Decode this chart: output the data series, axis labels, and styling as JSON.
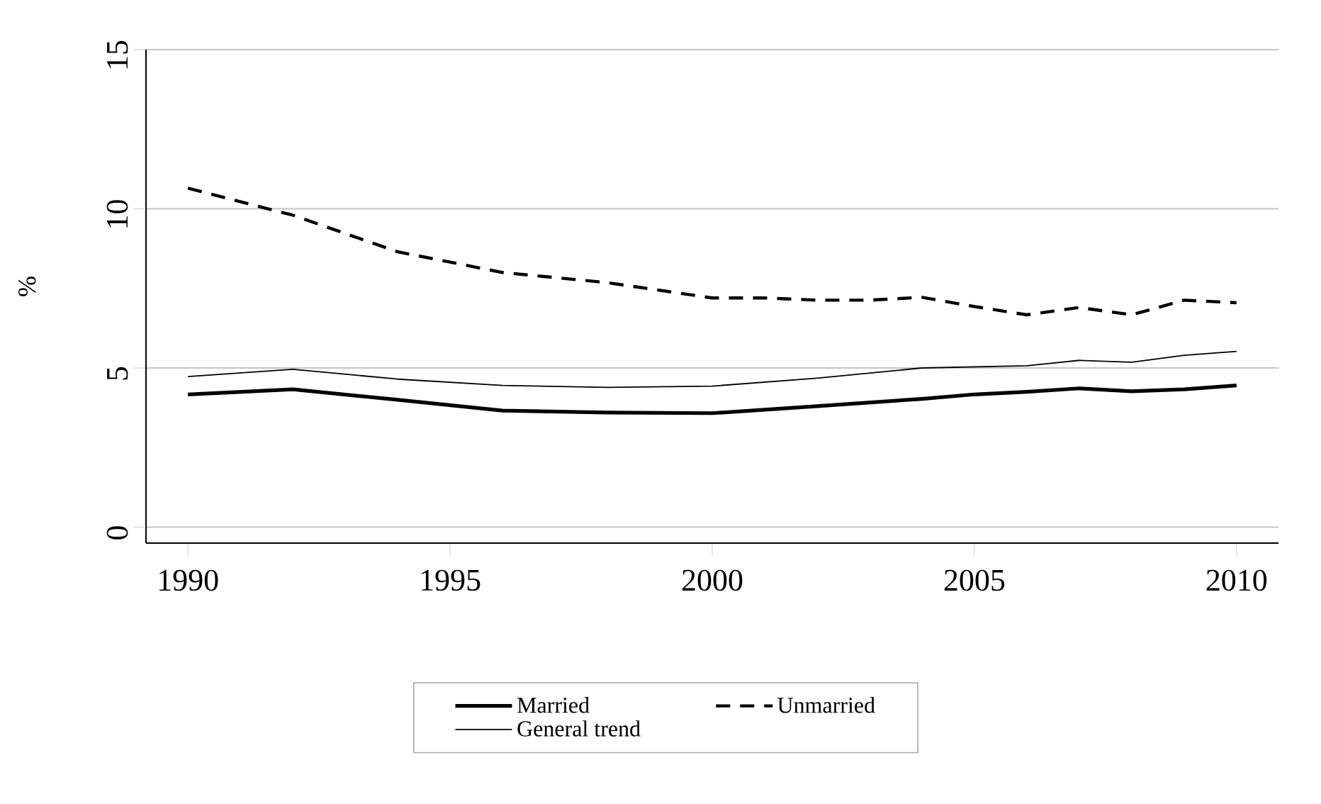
{
  "chart_data": {
    "type": "line",
    "ylabel": "%",
    "xlim": [
      1989.2,
      2010.8
    ],
    "ylim": [
      -0.5,
      15
    ],
    "xticks": [
      1990,
      1995,
      2000,
      2005,
      2010
    ],
    "yticks": [
      0,
      5,
      10,
      15
    ],
    "grid": "y",
    "legend": "bottom",
    "series": [
      {
        "name": "Married",
        "color": "#000000",
        "line_style": "solid",
        "x": [
          1990,
          1992,
          1994,
          1996,
          1998,
          2000,
          2002,
          2004,
          2005,
          2006,
          2007,
          2008,
          2009,
          2010
        ],
        "values": [
          4.17,
          4.33,
          4.0,
          3.66,
          3.6,
          3.58,
          3.8,
          4.03,
          4.17,
          4.25,
          4.36,
          4.27,
          4.33,
          4.45
        ]
      },
      {
        "name": "Unmarried",
        "color": "#000000",
        "line_style": "dashed",
        "x": [
          1990,
          1992,
          1994,
          1996,
          1998,
          2000,
          2001,
          2002,
          2003,
          2004,
          2005,
          2006,
          2007,
          2008,
          2009,
          2010
        ],
        "values": [
          10.65,
          9.8,
          8.65,
          8.0,
          7.68,
          7.2,
          7.2,
          7.13,
          7.13,
          7.22,
          6.93,
          6.67,
          6.9,
          6.67,
          7.13,
          7.05
        ]
      },
      {
        "name": "General trend",
        "color": "#000000",
        "line_style": "solid",
        "x": [
          1990,
          1992,
          1994,
          1996,
          1998,
          2000,
          2002,
          2004,
          2006,
          2007,
          2008,
          2009,
          2010
        ],
        "values": [
          4.73,
          4.96,
          4.65,
          4.45,
          4.39,
          4.43,
          4.68,
          5.0,
          5.07,
          5.24,
          5.18,
          5.4,
          5.52
        ]
      }
    ]
  }
}
